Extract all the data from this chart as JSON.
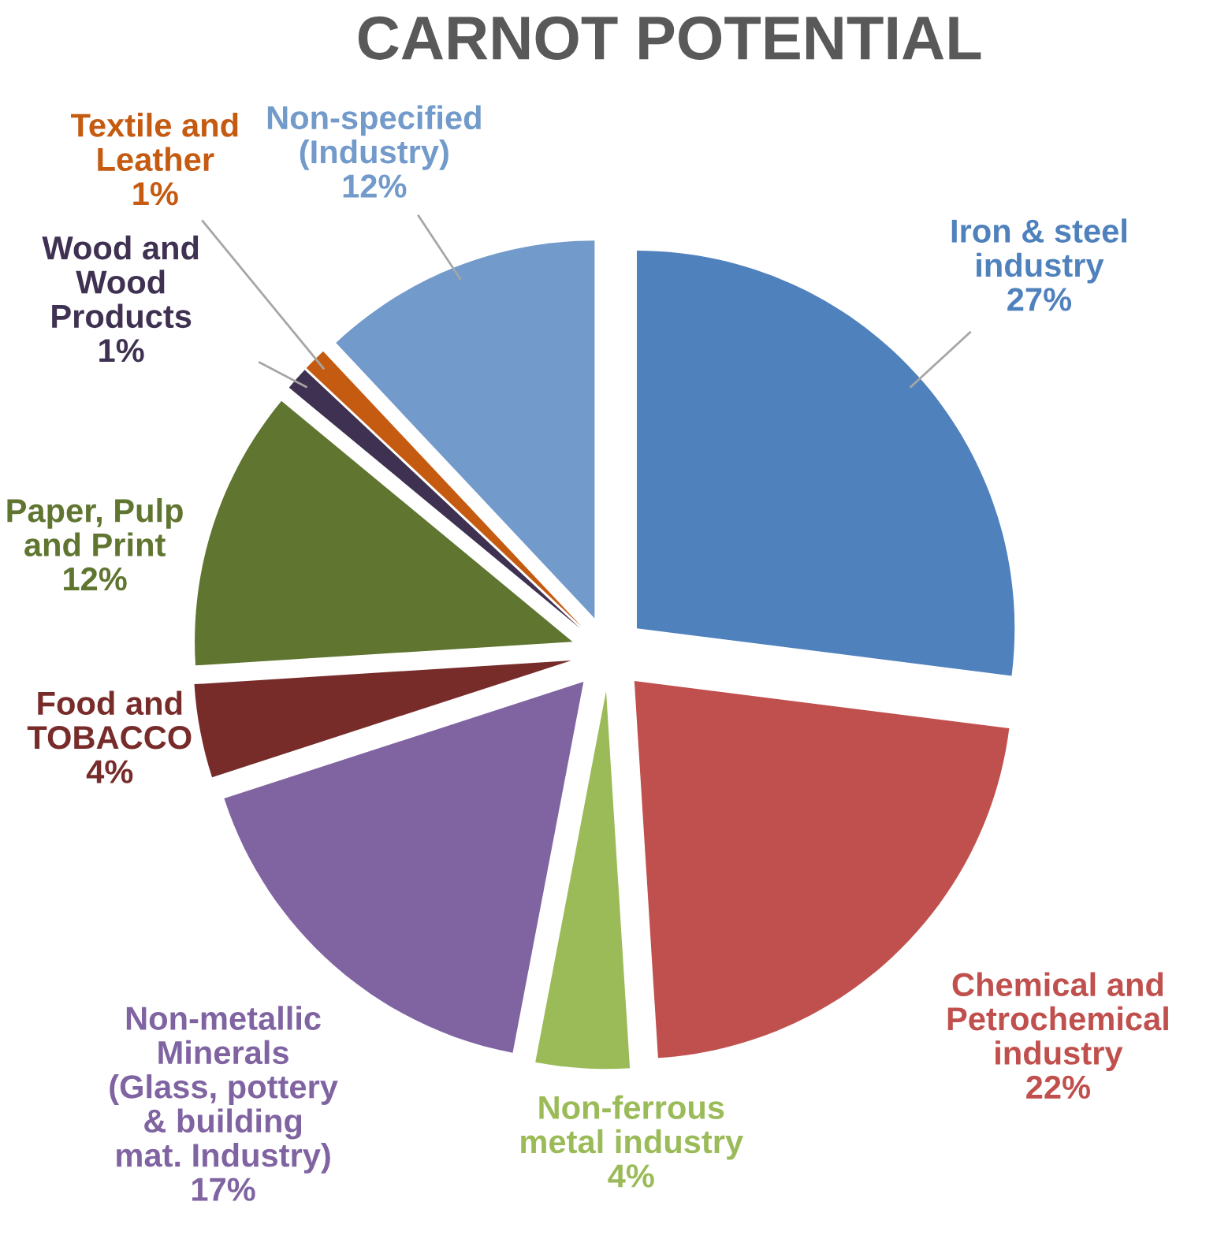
{
  "chart_data": {
    "type": "pie",
    "title": "CARNOT POTENTIAL",
    "categories": [
      "Iron & steel\nindustry",
      "Chemical and\nPetrochemical\nindustry",
      "Non-ferrous\nmetal industry",
      "Non-metallic\nMinerals\n(Glass, pottery\n& building\nmat. Industry)",
      "Food and\nTOBACCO",
      "Paper, Pulp\nand Print",
      "Wood and\nWood\nProducts",
      "Textile and\nLeather",
      "Non-specified\n(Industry)"
    ],
    "values": [
      27,
      22,
      4,
      17,
      4,
      12,
      1,
      1,
      12
    ],
    "colors": [
      "#4f81bd",
      "#c0504d",
      "#9bbb59",
      "#8064a2",
      "#772c2a",
      "#5f7530",
      "#3f3151",
      "#c55a11",
      "#729aca"
    ],
    "value_labels": [
      "27%",
      "22%",
      "4%",
      "17%",
      "4%",
      "12%",
      "1%",
      "1%",
      "12%"
    ],
    "legend": false
  }
}
